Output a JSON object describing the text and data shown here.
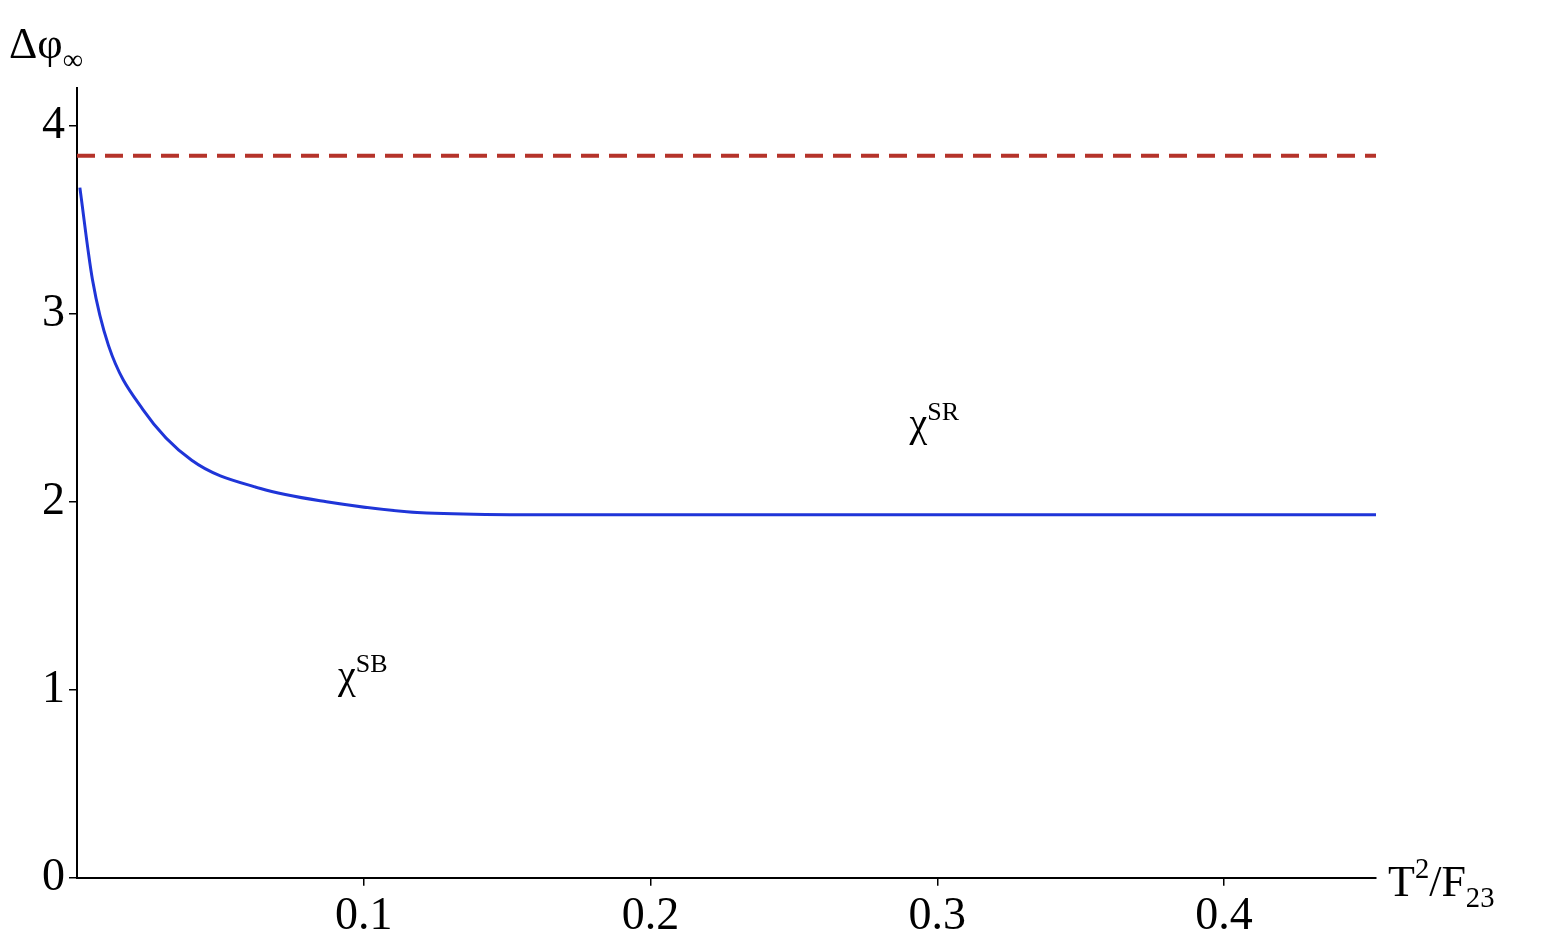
{
  "chart_data": {
    "type": "line",
    "xlabel": "T$^{2}$/F$_{23}$",
    "ylabel": "Δφ$_{∞}$",
    "series": [
      {
        "color": "#1f35d8",
        "x": [
          0.001,
          0.0054,
          0.011,
          0.023,
          0.04,
          0.064,
          0.087,
          0.122,
          0.169,
          0.25,
          0.35,
          0.453
        ],
        "values": [
          3.67,
          3.18,
          2.83,
          2.49,
          2.22,
          2.07,
          2.0,
          1.94,
          1.93,
          1.93,
          1.93,
          1.93
        ]
      }
    ],
    "xlim": [
      0,
      0.453
    ],
    "xticks": [
      0.1,
      0.2,
      0.3,
      0.4
    ],
    "ylim": [
      0,
      4.2
    ],
    "yticks": [
      0,
      1,
      2,
      3,
      4
    ],
    "ref_lines": [
      {
        "axis": "y",
        "value": 3.84,
        "color": "#b5332a",
        "line_style": "dashed"
      }
    ],
    "annotations": [
      "χ$^{SR}$",
      "χ$^{SB}$"
    ],
    "grid": false,
    "legend": false,
    "marker": "none",
    "line_style": "solid"
  }
}
